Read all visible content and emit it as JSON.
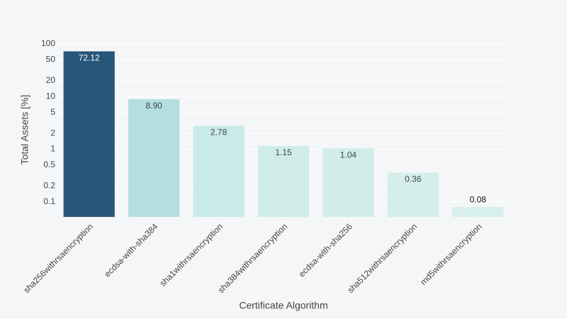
{
  "chart_data": {
    "type": "bar",
    "xlabel": "Certificate Algorithm",
    "ylabel": "Total Assets [%]",
    "categories": [
      "sha256withrsaencryption",
      "ecdsa-with-sha384",
      "sha1withrsaencryption",
      "sha384withrsaencryption",
      "ecdsa-with-sha256",
      "sha512withrsaencryption",
      "md5withrsaencryption"
    ],
    "values": [
      72.12,
      8.9,
      2.78,
      1.15,
      1.04,
      0.36,
      0.08
    ],
    "value_labels": [
      "72.12",
      "8.90",
      "2.78",
      "1.15",
      "1.04",
      "0.36",
      "0.08"
    ],
    "colors": [
      "#27567a",
      "#b3dfe0",
      "#c9eae8",
      "#cfece9",
      "#d1ede9",
      "#d4efea",
      "#d7f0eb"
    ],
    "log_y": true,
    "ylim": [
      0.052,
      120
    ],
    "yticks": [
      0.1,
      0.2,
      0.5,
      1,
      2,
      5,
      10,
      20,
      50,
      100
    ],
    "grid": true
  }
}
